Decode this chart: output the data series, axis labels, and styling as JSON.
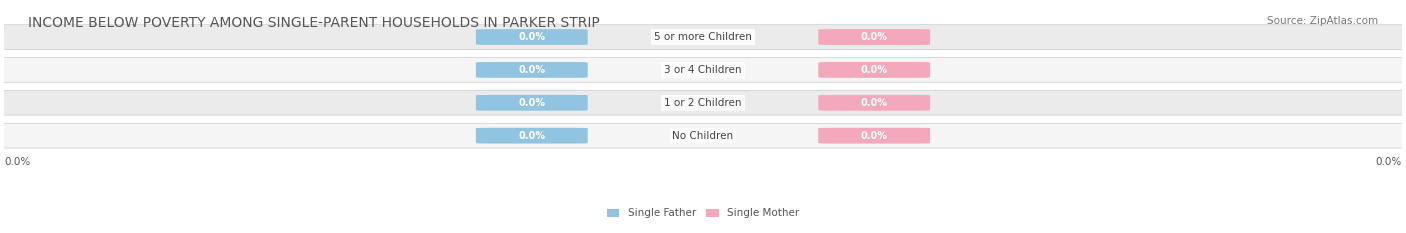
{
  "title": "INCOME BELOW POVERTY AMONG SINGLE-PARENT HOUSEHOLDS IN PARKER STRIP",
  "source": "Source: ZipAtlas.com",
  "categories": [
    "No Children",
    "1 or 2 Children",
    "3 or 4 Children",
    "5 or more Children"
  ],
  "father_values": [
    0.0,
    0.0,
    0.0,
    0.0
  ],
  "mother_values": [
    0.0,
    0.0,
    0.0,
    0.0
  ],
  "father_color": "#91c4e0",
  "mother_color": "#f4a8bc",
  "row_bg_colors": [
    "#f5f5f5",
    "#ebebeb"
  ],
  "axis_label_left": "0.0%",
  "axis_label_right": "0.0%",
  "legend_father": "Single Father",
  "legend_mother": "Single Mother",
  "title_fontsize": 10,
  "source_fontsize": 7.5,
  "label_fontsize": 7.5,
  "bar_label_fontsize": 7,
  "category_fontsize": 7.5
}
